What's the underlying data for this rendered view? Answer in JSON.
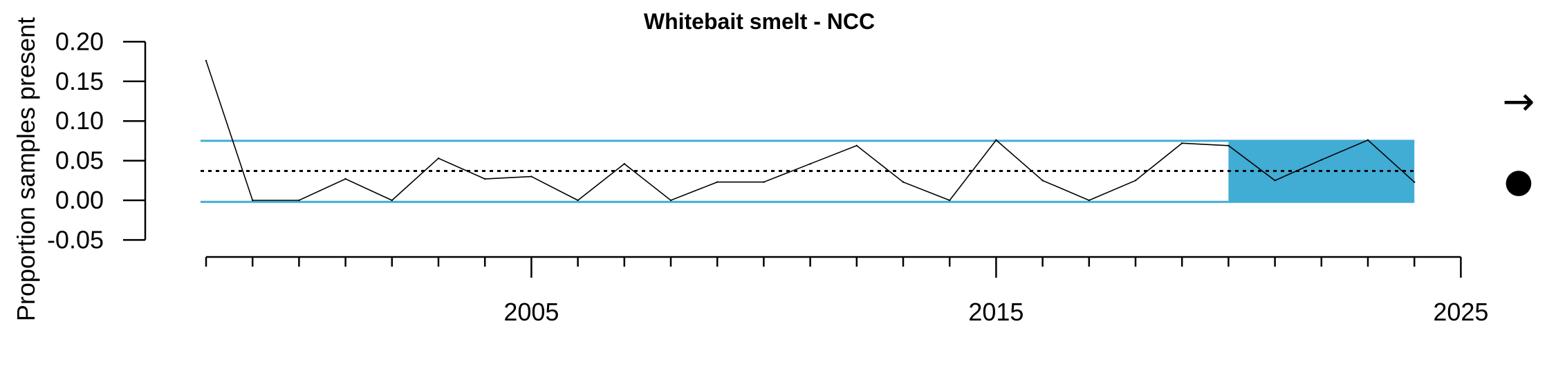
{
  "chart_data": {
    "type": "line",
    "title": "Whitebait smelt - NCC",
    "ylabel": "Proportion samples present",
    "xlabel": "",
    "ylim": [
      -0.05,
      0.2
    ],
    "xlim": [
      1998,
      2025
    ],
    "y_ticks": [
      "-0.05",
      "0.00",
      "0.05",
      "0.10",
      "0.15",
      "0.20"
    ],
    "x_ticks": [
      "2005",
      "2015",
      "2025"
    ],
    "series": [
      {
        "x": [
          1998,
          1999,
          2000,
          2001,
          2002,
          2003,
          2004,
          2005,
          2006,
          2007,
          2008,
          2009,
          2010,
          2011,
          2012,
          2013,
          2014,
          2015,
          2016,
          2017,
          2018,
          2019,
          2020,
          2021,
          2022,
          2023,
          2024
        ],
        "values": [
          0.176,
          0.0,
          0.0,
          0.027,
          0.0,
          0.053,
          0.027,
          0.03,
          0.0,
          0.046,
          0.0,
          0.023,
          0.023,
          0.046,
          0.069,
          0.023,
          0.0,
          0.076,
          0.025,
          0.0,
          0.025,
          0.072,
          0.069,
          0.025,
          0.051,
          0.076,
          0.023
        ]
      }
    ],
    "mean": 0.037,
    "upper_sd": 0.075,
    "lower_sd": -0.002,
    "highlight_range": [
      2020,
      2024
    ],
    "trend_symbol": "→",
    "status_symbol": "●",
    "colors": {
      "line": "#000000",
      "band": "#41acd4",
      "highlight": "#41acd4",
      "mean": "#000000"
    }
  }
}
